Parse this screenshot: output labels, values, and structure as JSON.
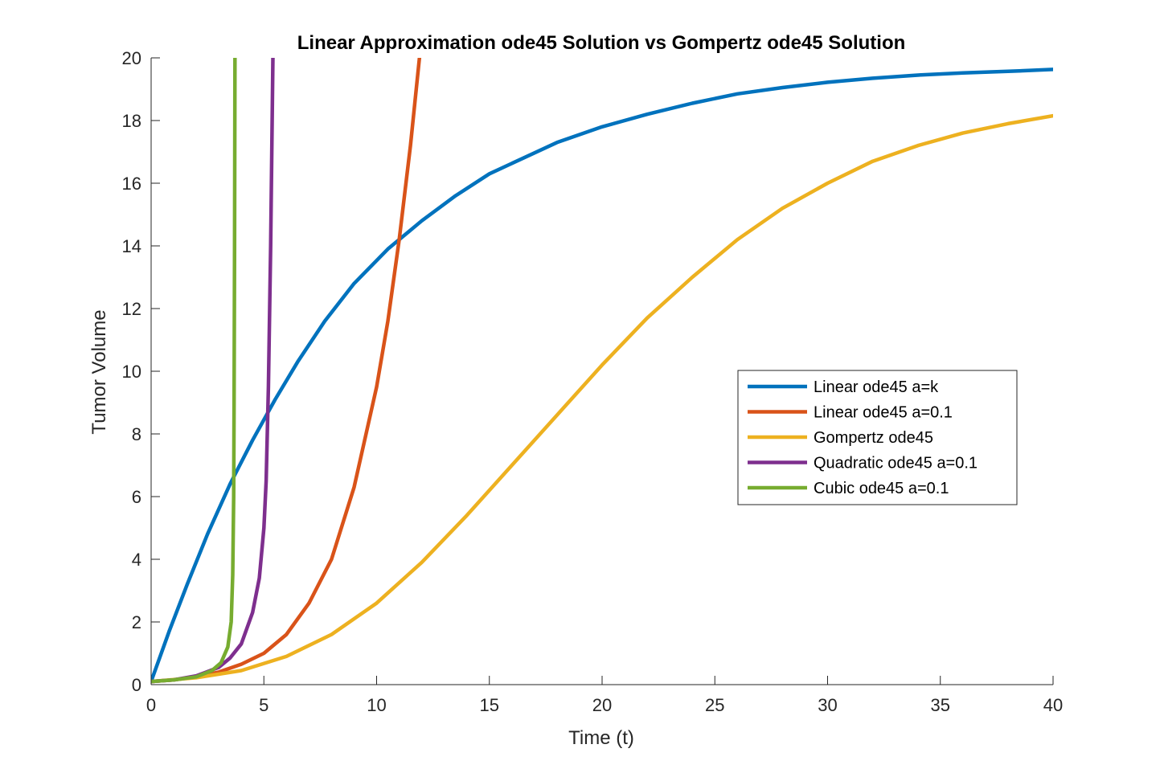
{
  "chart_data": {
    "type": "line",
    "title": "Linear Approximation ode45 Solution vs Gompertz ode45 Solution",
    "xlabel": "Time (t)",
    "ylabel": "Tumor Volume",
    "xlim": [
      0,
      40
    ],
    "ylim": [
      0,
      20
    ],
    "xticks": [
      "0",
      "5",
      "10",
      "15",
      "20",
      "25",
      "30",
      "35",
      "40"
    ],
    "yticks": [
      "0",
      "2",
      "4",
      "6",
      "8",
      "10",
      "12",
      "14",
      "16",
      "18",
      "20"
    ],
    "grid": false,
    "legend_position": "right-center",
    "series": [
      {
        "name": "Linear ode45 a=k",
        "color": "#0072BD",
        "x": [
          0,
          0.8,
          1.6,
          2.5,
          3.5,
          4.5,
          5.5,
          6.5,
          7.7,
          9.0,
          10.5,
          12.0,
          13.5,
          15.0,
          16.5,
          18.0,
          20.0,
          22.0,
          24.0,
          26.0,
          28.0,
          30.0,
          32.0,
          34.0,
          36.0,
          38.0,
          40.0
        ],
        "y": [
          0.1,
          1.7,
          3.2,
          4.8,
          6.4,
          7.8,
          9.1,
          10.3,
          11.6,
          12.8,
          13.9,
          14.8,
          15.6,
          16.3,
          16.8,
          17.3,
          17.8,
          18.2,
          18.55,
          18.85,
          19.05,
          19.22,
          19.35,
          19.45,
          19.52,
          19.57,
          19.63
        ]
      },
      {
        "name": "Linear ode45 a=0.1",
        "color": "#D95319",
        "x": [
          0,
          1,
          2,
          3,
          4,
          5,
          6,
          7,
          8,
          9,
          10,
          10.5,
          11,
          11.5,
          11.9
        ],
        "y": [
          0.1,
          0.15,
          0.25,
          0.4,
          0.65,
          1.0,
          1.6,
          2.6,
          4.0,
          6.3,
          9.5,
          11.6,
          14.2,
          17.2,
          20.0
        ]
      },
      {
        "name": "Gompertz ode45",
        "color": "#EDB120",
        "x": [
          0,
          2,
          4,
          6,
          8,
          10,
          12,
          14,
          16,
          18,
          20,
          22,
          24,
          26,
          28,
          30,
          32,
          34,
          36,
          38,
          40
        ],
        "y": [
          0.1,
          0.22,
          0.45,
          0.9,
          1.6,
          2.6,
          3.9,
          5.4,
          7.0,
          8.6,
          10.2,
          11.7,
          13.0,
          14.2,
          15.2,
          16.0,
          16.7,
          17.2,
          17.6,
          17.9,
          18.15
        ]
      },
      {
        "name": "Quadratic ode45 a=0.1",
        "color": "#7E2F8E",
        "x": [
          0,
          1,
          2,
          3,
          3.5,
          4,
          4.5,
          4.8,
          5.0,
          5.1,
          5.2,
          5.3,
          5.35,
          5.4
        ],
        "y": [
          0.1,
          0.15,
          0.28,
          0.55,
          0.85,
          1.3,
          2.3,
          3.4,
          5.0,
          6.5,
          9.5,
          14.0,
          17.0,
          20.0
        ]
      },
      {
        "name": "Cubic ode45 a=0.1",
        "color": "#77AC30",
        "x": [
          0,
          1,
          2,
          2.7,
          3.1,
          3.4,
          3.55,
          3.62,
          3.66,
          3.68,
          3.7,
          3.72
        ],
        "y": [
          0.1,
          0.15,
          0.25,
          0.45,
          0.7,
          1.2,
          2.0,
          3.5,
          6.0,
          9.0,
          14.0,
          20.0
        ]
      }
    ]
  }
}
